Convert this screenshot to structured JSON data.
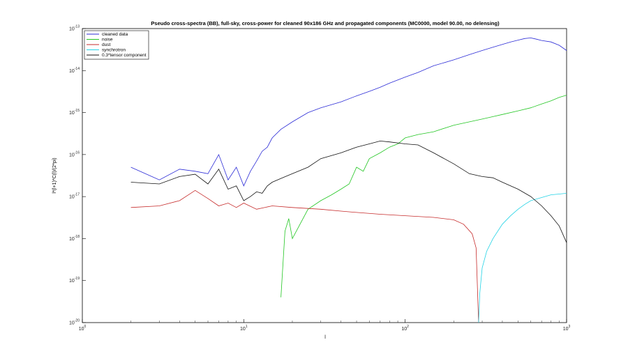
{
  "chart_data": {
    "type": "line",
    "title": "Pseudo cross-spectra (BB), full-sky, cross-power for cleaned 90x186 GHz and propagated components (MC0000, model 90.00, no delensing)",
    "xlabel": "l",
    "ylabel": "l*(l+1)*C(l)/(2*pi)",
    "xscale": "log",
    "yscale": "log",
    "xlim": [
      1,
      1000
    ],
    "ylim": [
      1e-20,
      1e-13
    ],
    "xticks": [
      {
        "value": 1,
        "label": "10",
        "exp": "0"
      },
      {
        "value": 10,
        "label": "10",
        "exp": "1"
      },
      {
        "value": 100,
        "label": "10",
        "exp": "2"
      },
      {
        "value": 1000,
        "label": "10",
        "exp": "3"
      }
    ],
    "yticks": [
      {
        "value": 1e-20,
        "label": "10",
        "exp": "-20"
      },
      {
        "value": 1e-19,
        "label": "10",
        "exp": "-19"
      },
      {
        "value": 1e-18,
        "label": "10",
        "exp": "-18"
      },
      {
        "value": 1e-17,
        "label": "10",
        "exp": "-17"
      },
      {
        "value": 1e-16,
        "label": "10",
        "exp": "-16"
      },
      {
        "value": 1e-15,
        "label": "10",
        "exp": "-15"
      },
      {
        "value": 1e-14,
        "label": "10",
        "exp": "-14"
      },
      {
        "value": 1e-13,
        "label": "10",
        "exp": "-13"
      }
    ],
    "grid": false,
    "legend_position": "top-left",
    "series": [
      {
        "name": "cleaned data",
        "color": "#2b2bd6",
        "x": [
          2,
          3,
          4,
          5,
          6,
          7,
          8,
          9,
          10,
          11,
          12,
          13,
          14,
          15,
          17,
          20,
          25,
          30,
          40,
          50,
          60,
          70,
          80,
          100,
          120,
          150,
          200,
          250,
          300,
          350,
          400,
          450,
          500,
          550,
          600,
          650,
          700,
          800,
          900,
          1000
        ],
        "y": [
          5e-17,
          2.5e-17,
          4.5e-17,
          4e-17,
          3.5e-17,
          1e-16,
          2.5e-17,
          5e-17,
          1.8e-17,
          4e-17,
          7e-17,
          1.2e-16,
          1.5e-16,
          2.5e-16,
          4e-16,
          6e-16,
          1e-15,
          1.3e-15,
          1.8e-15,
          2.5e-15,
          3.2e-15,
          4e-15,
          5e-15,
          7e-15,
          9e-15,
          1.3e-14,
          1.8e-14,
          2.4e-14,
          3e-14,
          3.6e-14,
          4.2e-14,
          4.8e-14,
          5.3e-14,
          5.8e-14,
          6e-14,
          5.6e-14,
          5.2e-14,
          4.8e-14,
          4e-14,
          3e-14
        ]
      },
      {
        "name": "noise",
        "color": "#22c622",
        "x": [
          17,
          18,
          19,
          20,
          25,
          30,
          35,
          40,
          45,
          50,
          55,
          60,
          70,
          80,
          90,
          100,
          120,
          150,
          200,
          250,
          300,
          350,
          400,
          500,
          600,
          700,
          800,
          900,
          1000
        ],
        "y": [
          4e-20,
          1.5e-18,
          3e-18,
          1e-18,
          5e-18,
          8e-18,
          1.1e-17,
          1.5e-17,
          2e-17,
          5e-17,
          4e-17,
          8e-17,
          1.1e-16,
          1.5e-16,
          1.8e-16,
          2.5e-16,
          3e-16,
          3.5e-16,
          5e-16,
          6e-16,
          7e-16,
          8e-16,
          9e-16,
          1.1e-15,
          1.3e-15,
          1.6e-15,
          1.9e-15,
          2.3e-15,
          2.6e-15
        ]
      },
      {
        "name": "dust",
        "color": "#c62b2b",
        "x": [
          2,
          3,
          4,
          5,
          6,
          7,
          8,
          9,
          10,
          12,
          15,
          20,
          30,
          40,
          50,
          70,
          100,
          150,
          200,
          230,
          260,
          275,
          285
        ],
        "y": [
          5.5e-18,
          6e-18,
          8e-18,
          1.4e-17,
          9e-18,
          6e-18,
          7e-18,
          5.5e-18,
          7e-18,
          5e-18,
          6e-18,
          5.5e-18,
          5e-18,
          4.5e-18,
          4.2e-18,
          3.8e-18,
          3.5e-18,
          3.2e-18,
          2.8e-18,
          2.2e-18,
          1.3e-18,
          6e-19,
          1e-20
        ]
      },
      {
        "name": "synchrotron",
        "color": "#22d3e6",
        "x": [
          285,
          290,
          300,
          320,
          350,
          400,
          450,
          500,
          550,
          600,
          700,
          800,
          900,
          1000
        ],
        "y": [
          1e-20,
          5e-20,
          2e-19,
          5e-19,
          1e-18,
          2.2e-18,
          3.5e-18,
          5e-18,
          6.5e-18,
          8e-18,
          9.5e-18,
          1.1e-17,
          1.15e-17,
          1.2e-17
        ]
      },
      {
        "name": "0.3*tensor component",
        "color": "#111111",
        "x": [
          2,
          3,
          4,
          5,
          6,
          7,
          8,
          9,
          10,
          11,
          12,
          13,
          14,
          15,
          17,
          20,
          25,
          30,
          40,
          50,
          60,
          70,
          80,
          100,
          120,
          150,
          200,
          250,
          300,
          350,
          400,
          500,
          600,
          700,
          800,
          900,
          1000
        ],
        "y": [
          2.2e-17,
          2e-17,
          3e-17,
          3.4e-17,
          2e-17,
          4.5e-17,
          1.5e-17,
          1.8e-17,
          8e-18,
          1e-17,
          1.3e-17,
          1.2e-17,
          1.8e-17,
          2.2e-17,
          2.7e-17,
          3.5e-17,
          5e-17,
          8e-17,
          1.1e-16,
          1.5e-16,
          1.8e-16,
          2.1e-16,
          2e-16,
          1.8e-16,
          1.7e-16,
          1.1e-16,
          6e-17,
          3.5e-17,
          3e-17,
          2.8e-17,
          2.2e-17,
          1.5e-17,
          1e-17,
          6e-18,
          3.5e-18,
          2e-18,
          8e-19
        ]
      }
    ]
  }
}
